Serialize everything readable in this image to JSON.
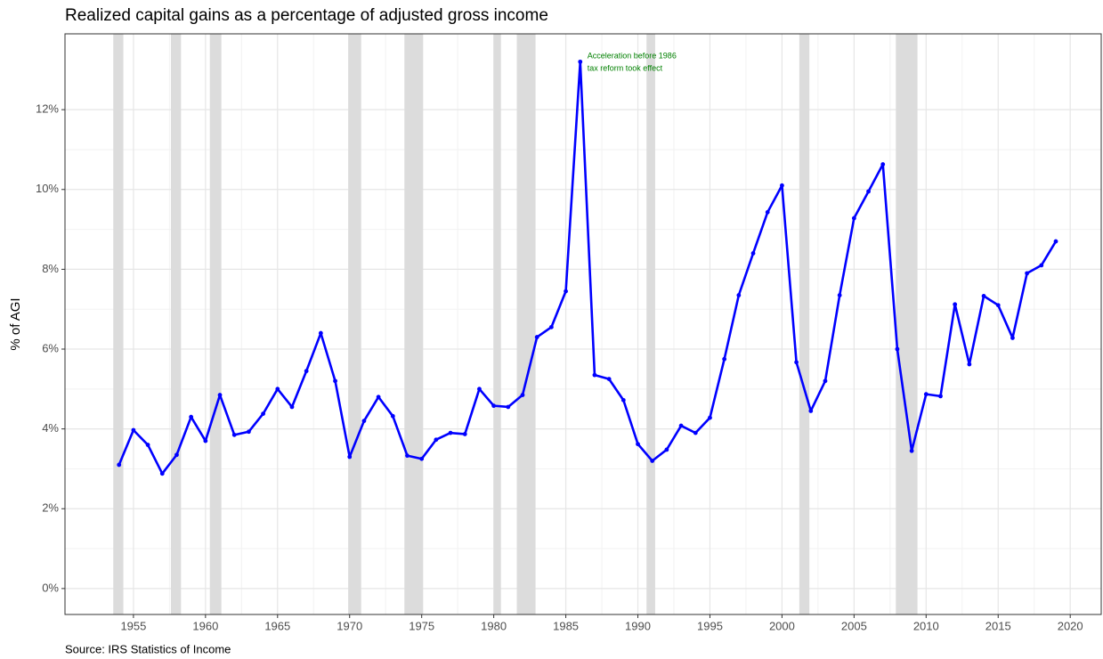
{
  "chart_data": {
    "type": "line",
    "title": "Realized capital gains as a percentage of adjusted gross income",
    "y_label": "% of AGI",
    "source": "Source: IRS Statistics of Income",
    "annotation": [
      "Acceleration before 1986",
      "tax reform took effect"
    ],
    "annotation_color": "#008000",
    "color": "#0000ff",
    "shade_color": "#dcdcdc",
    "x": [
      1954,
      1955,
      1956,
      1957,
      1958,
      1959,
      1960,
      1961,
      1962,
      1963,
      1964,
      1965,
      1966,
      1967,
      1968,
      1969,
      1970,
      1971,
      1972,
      1973,
      1974,
      1975,
      1976,
      1977,
      1978,
      1979,
      1980,
      1981,
      1982,
      1983,
      1984,
      1985,
      1986,
      1987,
      1988,
      1989,
      1990,
      1991,
      1992,
      1993,
      1994,
      1995,
      1996,
      1997,
      1998,
      1999,
      2000,
      2001,
      2002,
      2003,
      2004,
      2005,
      2006,
      2007,
      2008,
      2009,
      2010,
      2011,
      2012,
      2013,
      2014,
      2015,
      2016,
      2017,
      2018,
      2019
    ],
    "values": [
      3.1,
      3.97,
      3.6,
      2.88,
      3.35,
      4.3,
      3.7,
      4.85,
      3.85,
      3.93,
      4.38,
      5.0,
      4.55,
      5.45,
      6.4,
      5.2,
      3.3,
      4.2,
      4.8,
      4.32,
      3.33,
      3.25,
      3.73,
      3.9,
      3.87,
      5.0,
      4.58,
      4.55,
      4.85,
      6.3,
      6.55,
      7.45,
      13.2,
      5.35,
      5.25,
      4.72,
      3.62,
      3.2,
      3.48,
      4.08,
      3.9,
      4.28,
      5.75,
      7.35,
      8.4,
      9.43,
      10.1,
      5.67,
      4.45,
      5.2,
      7.35,
      9.28,
      9.95,
      10.63,
      6.0,
      3.45,
      4.87,
      4.82,
      7.12,
      5.62,
      7.33,
      7.1,
      6.28,
      7.9,
      8.1,
      8.7
    ],
    "shaded_ranges": [
      [
        1953.6,
        1954.3
      ],
      [
        1957.6,
        1958.3
      ],
      [
        1960.3,
        1961.1
      ],
      [
        1969.9,
        1970.8
      ],
      [
        1973.8,
        1975.1
      ],
      [
        1980.0,
        1980.5
      ],
      [
        1981.6,
        1982.9
      ],
      [
        1990.6,
        1991.2
      ],
      [
        2001.2,
        2001.9
      ],
      [
        2007.9,
        2009.4
      ]
    ],
    "xlim": [
      1950.25,
      2022.15
    ],
    "ylim": [
      -0.65,
      13.9
    ],
    "xticks": [
      1955,
      1960,
      1965,
      1970,
      1975,
      1980,
      1985,
      1990,
      1995,
      2000,
      2005,
      2010,
      2015,
      2020
    ],
    "yticks": [
      {
        "value": 0,
        "label": "0%"
      },
      {
        "value": 2,
        "label": "2%"
      },
      {
        "value": 4,
        "label": "4%"
      },
      {
        "value": 6,
        "label": "6%"
      },
      {
        "value": 8,
        "label": "8%"
      },
      {
        "value": 10,
        "label": "10%"
      },
      {
        "value": 12,
        "label": "12%"
      }
    ],
    "grid": true
  }
}
